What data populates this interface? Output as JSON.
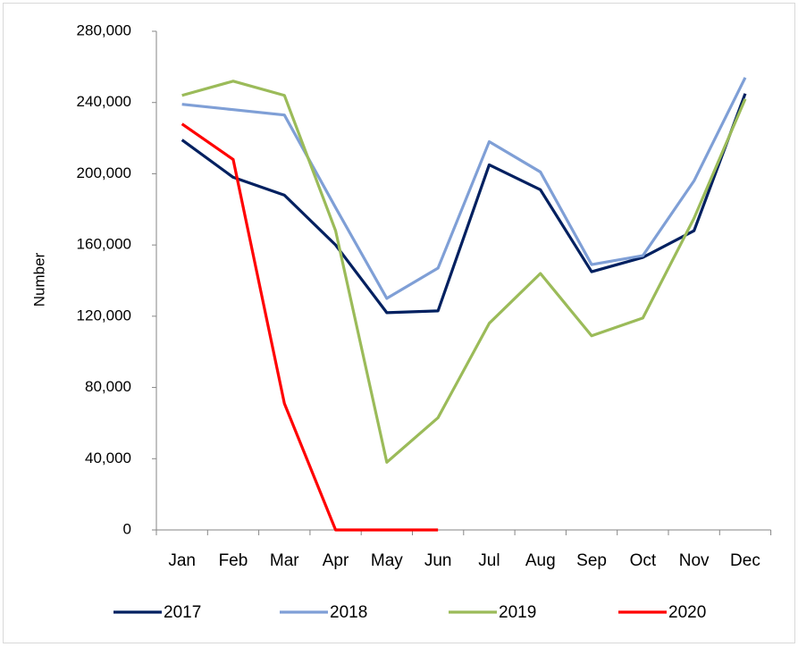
{
  "chart_data": {
    "type": "line",
    "y_label": "Number",
    "categories": [
      "Jan",
      "Feb",
      "Mar",
      "Apr",
      "May",
      "Jun",
      "Jul",
      "Aug",
      "Sep",
      "Oct",
      "Nov",
      "Dec"
    ],
    "series": [
      {
        "name": "2017",
        "color": "#002060",
        "values": [
          219000,
          198000,
          188000,
          160000,
          122000,
          123000,
          205000,
          191000,
          145000,
          153000,
          168000,
          245000
        ]
      },
      {
        "name": "2018",
        "color": "#7f9fd6",
        "values": [
          239000,
          236000,
          233000,
          181000,
          130000,
          147000,
          218000,
          201000,
          149000,
          154000,
          196000,
          254000
        ]
      },
      {
        "name": "2019",
        "color": "#9bbb59",
        "values": [
          244000,
          252000,
          244000,
          168000,
          38000,
          63000,
          116000,
          144000,
          109000,
          119000,
          175000,
          242000
        ]
      },
      {
        "name": "2020",
        "color": "#ff0000",
        "values": [
          228000,
          208000,
          71000,
          0,
          0,
          0,
          null,
          null,
          null,
          null,
          null,
          null
        ]
      }
    ],
    "ylim": [
      0,
      280000
    ],
    "yticks": [
      0,
      {
        "value": 40000,
        "label": "40,000"
      },
      {
        "value": 80000,
        "label": "80,000"
      },
      {
        "value": 120000,
        "label": "120,000"
      },
      {
        "value": 160000,
        "label": "160,000"
      },
      {
        "value": 200000,
        "label": "200,000"
      },
      {
        "value": 240000,
        "label": "240,000"
      },
      {
        "value": 280000,
        "label": "280,000"
      }
    ],
    "legend": "bottom"
  }
}
